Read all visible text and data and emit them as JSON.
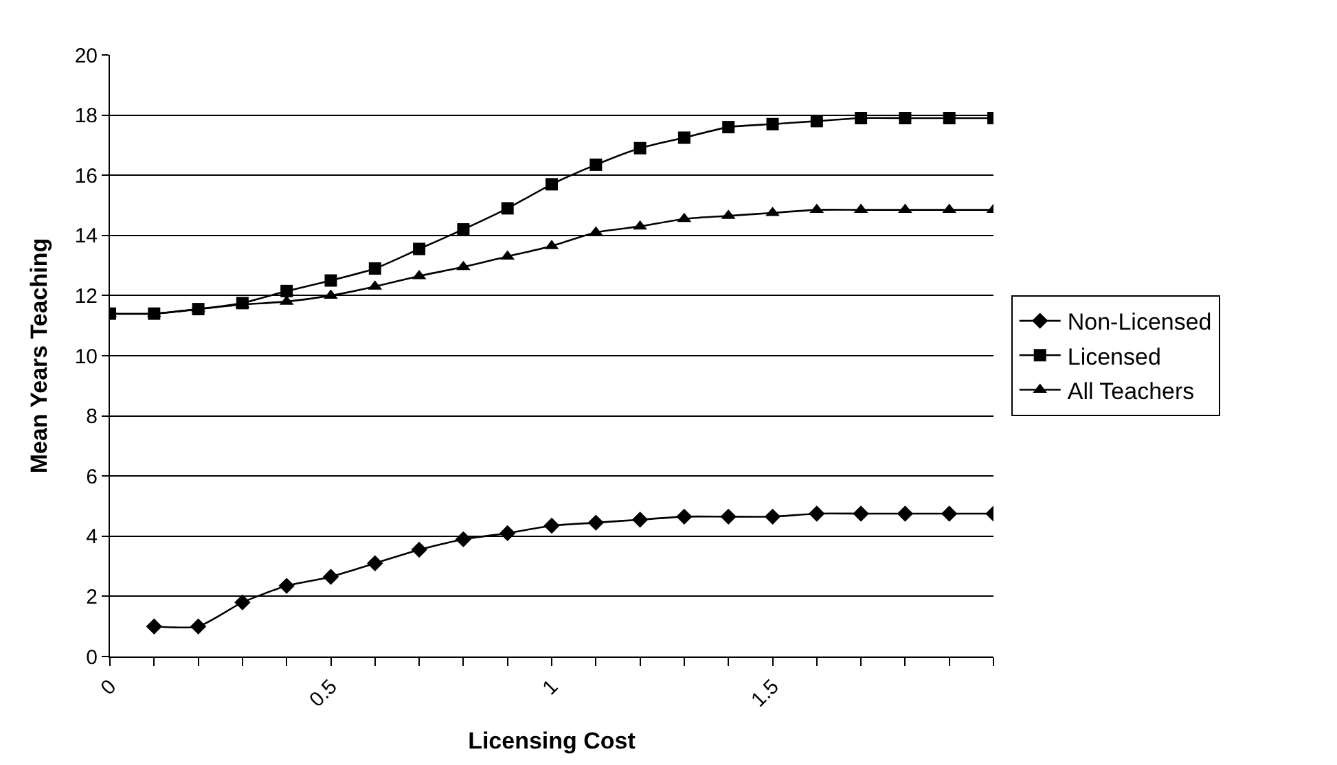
{
  "chart_data": {
    "type": "line",
    "xlabel": "Licensing Cost",
    "ylabel": "Mean Years Teaching",
    "x": [
      0,
      0.1,
      0.2,
      0.3,
      0.4,
      0.5,
      0.6,
      0.7,
      0.8,
      0.9,
      1.0,
      1.1,
      1.2,
      1.3,
      1.4,
      1.5,
      1.6,
      1.7,
      1.8,
      1.9,
      2.0
    ],
    "series": [
      {
        "name": "Non-Licensed",
        "color": "#000000",
        "marker": "diamond",
        "values": [
          null,
          1.0,
          1.0,
          1.8,
          2.35,
          2.65,
          3.1,
          3.55,
          3.9,
          4.1,
          4.35,
          4.45,
          4.55,
          4.65,
          4.65,
          4.65,
          4.75,
          4.75,
          4.75,
          4.75,
          4.75
        ]
      },
      {
        "name": "Licensed",
        "color": "#000000",
        "marker": "square",
        "values": [
          11.4,
          11.4,
          11.55,
          11.75,
          12.15,
          12.5,
          12.9,
          13.55,
          14.2,
          14.9,
          15.7,
          16.35,
          16.9,
          17.25,
          17.6,
          17.7,
          17.8,
          17.9,
          17.9,
          17.9,
          17.9
        ]
      },
      {
        "name": "All Teachers",
        "color": "#000000",
        "marker": "triangle",
        "values": [
          11.4,
          11.4,
          11.55,
          11.7,
          11.8,
          12.0,
          12.3,
          12.65,
          12.95,
          13.3,
          13.65,
          14.1,
          14.3,
          14.55,
          14.65,
          14.75,
          14.85,
          14.85,
          14.85,
          14.85,
          14.85
        ]
      }
    ],
    "xlim": [
      0,
      2
    ],
    "xticks": [
      0,
      {
        "value": 0.1,
        "label": null
      },
      {
        "value": 0.2,
        "label": null
      },
      {
        "value": 0.3,
        "label": null
      },
      {
        "value": 0.4,
        "label": null
      },
      0.5,
      {
        "value": 0.6,
        "label": null
      },
      {
        "value": 0.7,
        "label": null
      },
      {
        "value": 0.8,
        "label": null
      },
      {
        "value": 0.9,
        "label": null
      },
      1,
      {
        "value": 1.1,
        "label": null
      },
      {
        "value": 1.2,
        "label": null
      },
      {
        "value": 1.3,
        "label": null
      },
      {
        "value": 1.4,
        "label": null
      },
      1.5,
      {
        "value": 1.6,
        "label": null
      },
      {
        "value": 1.7,
        "label": null
      },
      {
        "value": 1.8,
        "label": null
      },
      {
        "value": 1.9,
        "label": null
      },
      {
        "value": 2,
        "label": null
      }
    ],
    "ylim": [
      0,
      20
    ],
    "yticks": [
      0,
      2,
      4,
      6,
      8,
      10,
      12,
      14,
      16,
      18,
      20
    ],
    "grid": "y",
    "legend": "right",
    "line_style": "solid"
  }
}
